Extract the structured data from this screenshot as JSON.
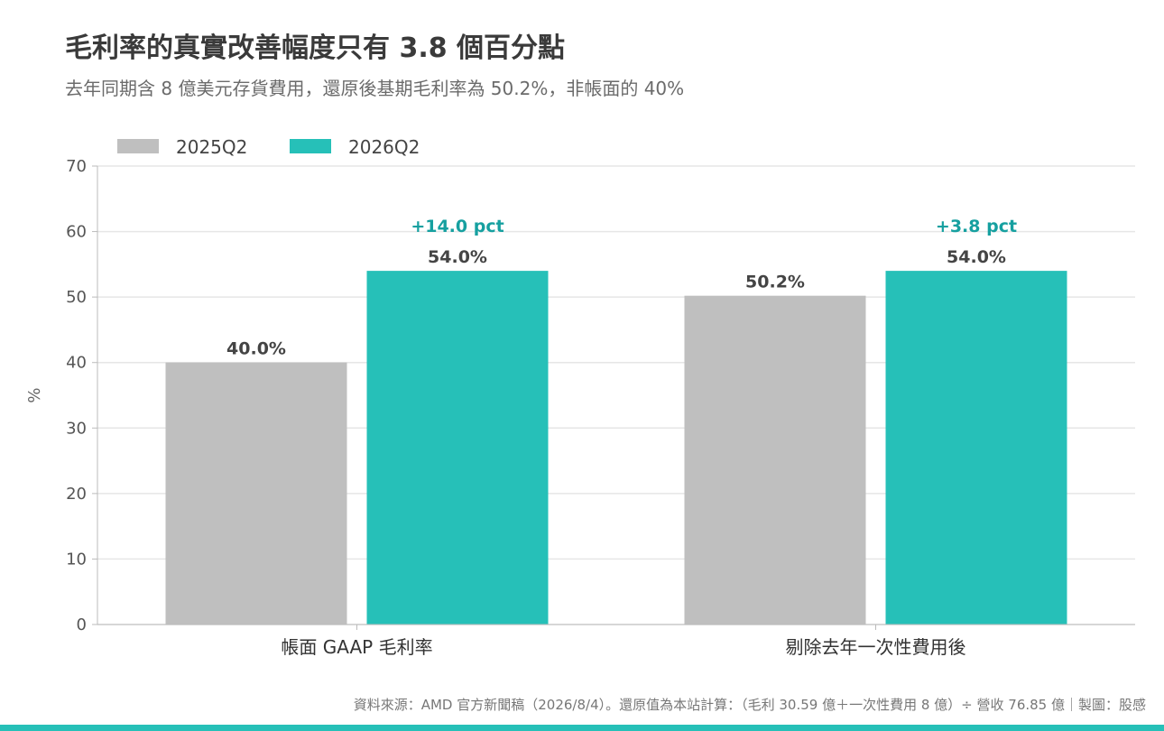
{
  "title": "毛利率的真實改善幅度只有 3.8 個百分點",
  "subtitle": "去年同期含 8 億美元存貨費用，還原後基期毛利率為 50.2%，非帳面的 40%",
  "source": "資料來源：AMD 官方新聞稿（2026/8/4）。還原值為本站計算：（毛利 30.59 億＋一次性費用 8 億）÷ 營收 76.85 億｜製圖：股感",
  "colors": {
    "series_2025": "#bfbfbf",
    "series_2026": "#26c0b8",
    "delta": "#16a0a0",
    "grid": "#e6e6e6",
    "axis": "#bbbbbb",
    "bottom_bar": "#26c0b8"
  },
  "chart_data": {
    "type": "bar",
    "categories": [
      "帳面 GAAP 毛利率",
      "剔除去年一次性費用後"
    ],
    "series": [
      {
        "name": "2025Q2",
        "values": [
          40.0,
          50.2
        ],
        "labels": [
          "40.0%",
          "50.2%"
        ]
      },
      {
        "name": "2026Q2",
        "values": [
          54.0,
          54.0
        ],
        "labels": [
          "54.0%",
          "54.0%"
        ]
      }
    ],
    "annotations": [
      "+14.0 pct",
      "+3.8 pct"
    ],
    "ylabel": "%",
    "ylim": [
      0,
      70
    ],
    "yticks": [
      0,
      10,
      20,
      30,
      40,
      50,
      60,
      70
    ],
    "grid": true,
    "legend": "top-left"
  }
}
